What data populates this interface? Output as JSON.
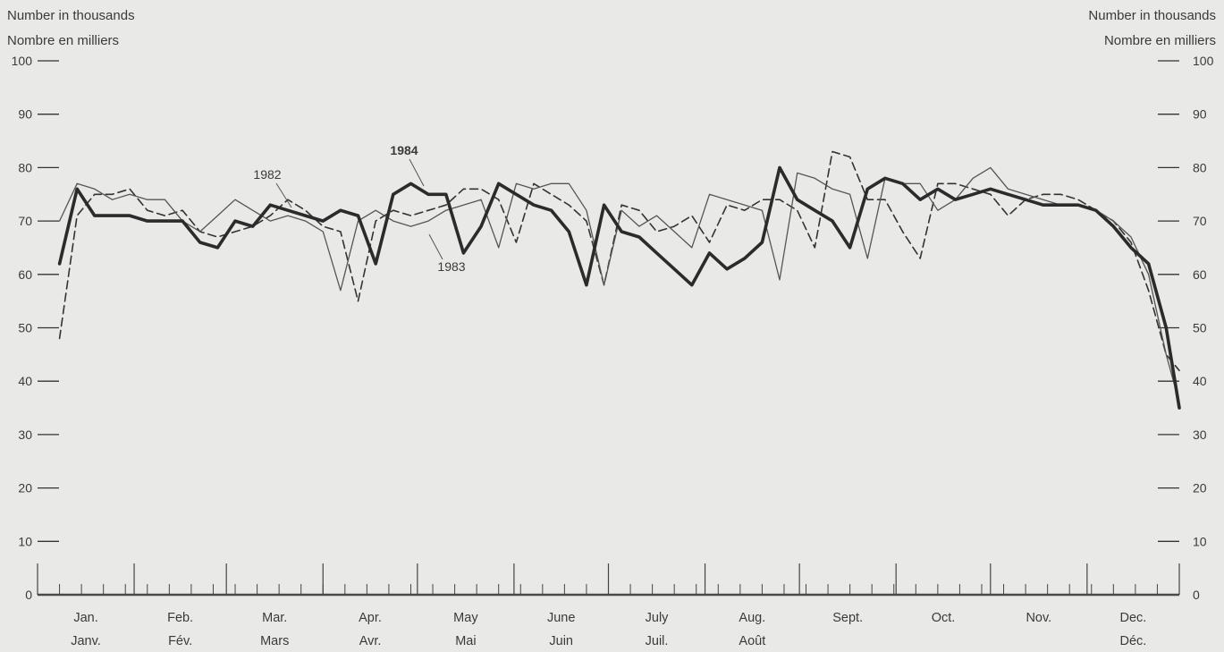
{
  "chart_data": {
    "type": "line",
    "ylabel_left": [
      "Number in thousands",
      "Nombre en milliers"
    ],
    "ylabel_right": [
      "Number in thousands",
      "Nombre en milliers"
    ],
    "ylim": [
      0,
      100
    ],
    "yticks": [
      0,
      10,
      20,
      30,
      40,
      50,
      60,
      70,
      80,
      90,
      100
    ],
    "ytick_labels": [
      "0",
      "10",
      "20",
      "30",
      "40",
      "50",
      "60",
      "70",
      "80",
      "90",
      "100"
    ],
    "x_unit": "week",
    "weeks_per_year": 52,
    "months": [
      {
        "en": "Jan.",
        "fr": "Janv."
      },
      {
        "en": "Feb.",
        "fr": "Fév."
      },
      {
        "en": "Mar.",
        "fr": "Mars"
      },
      {
        "en": "Apr.",
        "fr": "Avr."
      },
      {
        "en": "May",
        "fr": "Mai"
      },
      {
        "en": "June",
        "fr": "Juin"
      },
      {
        "en": "July",
        "fr": "Juil."
      },
      {
        "en": "Aug.",
        "fr": "Août"
      },
      {
        "en": "Sept.",
        "fr": ""
      },
      {
        "en": "Oct.",
        "fr": ""
      },
      {
        "en": "Nov.",
        "fr": ""
      },
      {
        "en": "Dec.",
        "fr": "Déc."
      }
    ],
    "month_start_weeks": [
      0,
      4.4,
      8.6,
      13,
      17.3,
      21.7,
      26,
      30.4,
      34.7,
      39.1,
      43.4,
      47.8,
      52
    ],
    "series": [
      {
        "name": "1982",
        "style": "dashed",
        "x": [
          1,
          1.8,
          2.6,
          3.4,
          4.2,
          5,
          5.8,
          6.6,
          7.4,
          8.2,
          9,
          9.8,
          10.6,
          11.4,
          12.2,
          13,
          13.8,
          14.6,
          15.4,
          16.2,
          17,
          17.8,
          18.6,
          19.4,
          20.2,
          21,
          21.8,
          22.6,
          23.4,
          24.2,
          25,
          25.8,
          26.6,
          27.4,
          28.2,
          29,
          29.8,
          30.6,
          31.4,
          32.2,
          33,
          33.8,
          34.6,
          35.4,
          36.2,
          37,
          37.8,
          38.6,
          39.4,
          40.2,
          41,
          41.8,
          42.6,
          43.4,
          44.2,
          45,
          45.8,
          46.6,
          47.4,
          48.2,
          49,
          49.8,
          50.6,
          51.4,
          52
        ],
        "y": [
          48,
          71,
          75,
          75,
          76,
          72,
          71,
          72,
          68,
          67,
          68,
          69,
          71,
          74,
          72,
          69,
          68,
          55,
          70,
          72,
          71,
          72,
          73,
          76,
          76,
          74,
          66,
          77,
          75,
          73,
          70,
          58,
          73,
          72,
          68,
          69,
          71,
          66,
          73,
          72,
          74,
          74,
          72,
          65,
          83,
          82,
          74,
          74,
          68,
          63,
          77,
          77,
          76,
          75,
          71,
          74,
          75,
          75,
          74,
          72,
          70,
          66,
          57,
          45,
          42
        ]
      },
      {
        "name": "1983",
        "style": "solid",
        "x": [
          1,
          1.8,
          2.6,
          3.4,
          4.2,
          5,
          5.8,
          6.6,
          7.4,
          8.2,
          9,
          9.8,
          10.6,
          11.4,
          12.2,
          13,
          13.8,
          14.6,
          15.4,
          16.2,
          17,
          17.8,
          18.6,
          19.4,
          20.2,
          21,
          21.8,
          22.6,
          23.4,
          24.2,
          25,
          25.8,
          26.6,
          27.4,
          28.2,
          29,
          29.8,
          30.6,
          31.4,
          32.2,
          33,
          33.8,
          34.6,
          35.4,
          36.2,
          37,
          37.8,
          38.6,
          39.4,
          40.2,
          41,
          41.8,
          42.6,
          43.4,
          44.2,
          45,
          45.8,
          46.6,
          47.4,
          48.2,
          49,
          49.8,
          50.6,
          51.4,
          52
        ],
        "y": [
          70,
          77,
          76,
          74,
          75,
          74,
          74,
          70,
          68,
          71,
          74,
          72,
          70,
          71,
          70,
          68,
          57,
          70,
          72,
          70,
          69,
          70,
          72,
          73,
          74,
          65,
          77,
          76,
          77,
          77,
          72,
          58,
          72,
          69,
          71,
          68,
          65,
          75,
          74,
          73,
          72,
          59,
          79,
          78,
          76,
          75,
          63,
          78,
          77,
          77,
          72,
          74,
          78,
          80,
          76,
          75,
          74,
          73,
          73,
          72,
          70,
          67,
          60,
          45,
          36
        ]
      },
      {
        "name": "1984",
        "style": "bold",
        "x": [
          1,
          1.8,
          2.6,
          3.4,
          4.2,
          5,
          5.8,
          6.6,
          7.4,
          8.2,
          9,
          9.8,
          10.6,
          11.4,
          12.2,
          13,
          13.8,
          14.6,
          15.4,
          16.2,
          17,
          17.8,
          18.6,
          19.4,
          20.2,
          21,
          21.8,
          22.6,
          23.4,
          24.2,
          25,
          25.8,
          26.6,
          27.4,
          28.2,
          29,
          29.8,
          30.6,
          31.4,
          32.2,
          33,
          33.8,
          34.6,
          35.4,
          36.2,
          37,
          37.8,
          38.6,
          39.4,
          40.2,
          41,
          41.8,
          42.6,
          43.4,
          44.2,
          45,
          45.8,
          46.6,
          47.4,
          48.2,
          49,
          49.8,
          50.6,
          51.4,
          52
        ],
        "y": [
          62,
          76,
          71,
          71,
          71,
          70,
          70,
          70,
          66,
          65,
          70,
          69,
          73,
          72,
          71,
          70,
          72,
          71,
          62,
          75,
          77,
          75,
          75,
          64,
          69,
          77,
          75,
          73,
          72,
          68,
          58,
          73,
          68,
          67,
          64,
          61,
          58,
          64,
          61,
          63,
          66,
          80,
          74,
          72,
          70,
          65,
          76,
          78,
          77,
          74,
          76,
          74,
          75,
          76,
          75,
          74,
          73,
          73,
          73,
          72,
          69,
          65,
          62,
          50,
          35
        ]
      }
    ],
    "annotations": [
      {
        "text": "1984",
        "bold": true
      },
      {
        "text": "1982",
        "bold": false
      },
      {
        "text": "1983",
        "bold": false
      }
    ]
  }
}
